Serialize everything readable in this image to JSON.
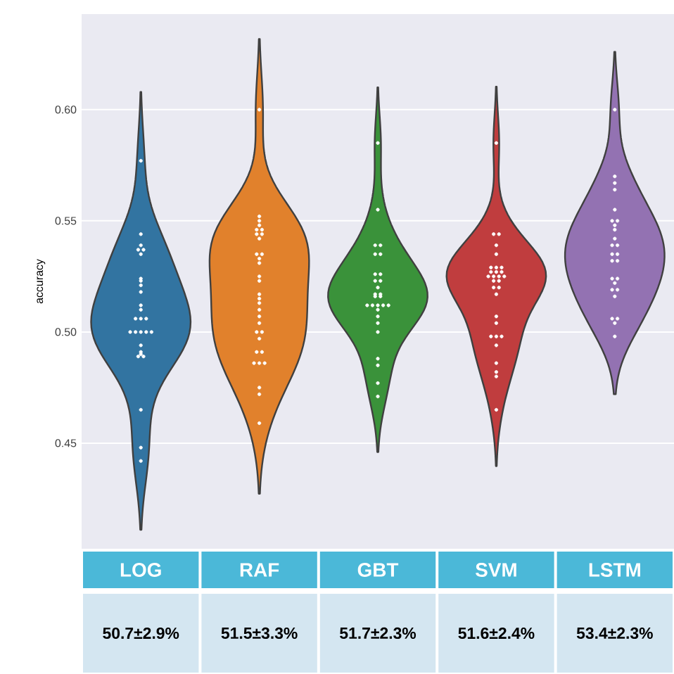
{
  "chart_data": {
    "type": "scatter",
    "ylabel": "accuracy",
    "categories": [
      "LOG",
      "RAF",
      "GBT",
      "SVM",
      "LSTM"
    ],
    "colors": [
      "#3274a1",
      "#e1812c",
      "#3a923a",
      "#c03d3e",
      "#9372b2"
    ],
    "ylim": [
      0.4025,
      0.643
    ],
    "yticks": [
      {
        "value": 0.45,
        "label": "0.45"
      },
      {
        "value": 0.5,
        "label": "0.50"
      },
      {
        "value": 0.55,
        "label": "0.55"
      },
      {
        "value": 0.6,
        "label": "0.60"
      }
    ],
    "grid": "y",
    "marker": "circle",
    "series": [
      {
        "color": "#ffffff",
        "x": [
          "LOG",
          "LOG",
          "LOG",
          "LOG",
          "LOG",
          "LOG",
          "LOG",
          "LOG",
          "LOG",
          "LOG",
          "LOG",
          "LOG",
          "LOG",
          "LOG",
          "LOG",
          "LOG",
          "LOG",
          "LOG",
          "LOG",
          "LOG",
          "LOG",
          "LOG",
          "LOG",
          "LOG",
          "LOG",
          "LOG",
          "LOG",
          "LOG"
        ],
        "values": [
          0.577,
          0.544,
          0.539,
          0.537,
          0.535,
          0.524,
          0.523,
          0.521,
          0.518,
          0.512,
          0.51,
          0.506,
          0.506,
          0.506,
          0.5,
          0.5,
          0.5,
          0.5,
          0.5,
          0.494,
          0.491,
          0.49,
          0.489,
          0.489,
          0.465,
          0.448,
          0.442,
          0.537
        ]
      },
      {
        "color": "#ffffff",
        "x": [
          "RAF",
          "RAF",
          "RAF",
          "RAF",
          "RAF",
          "RAF",
          "RAF",
          "RAF",
          "RAF",
          "RAF",
          "RAF",
          "RAF",
          "RAF",
          "RAF",
          "RAF",
          "RAF",
          "RAF",
          "RAF",
          "RAF",
          "RAF",
          "RAF",
          "RAF",
          "RAF",
          "RAF",
          "RAF",
          "RAF",
          "RAF",
          "RAF",
          "RAF",
          "RAF",
          "RAF",
          "RAF"
        ],
        "values": [
          0.6,
          0.552,
          0.55,
          0.548,
          0.546,
          0.546,
          0.544,
          0.544,
          0.542,
          0.535,
          0.535,
          0.533,
          0.531,
          0.525,
          0.523,
          0.517,
          0.515,
          0.513,
          0.51,
          0.507,
          0.504,
          0.5,
          0.5,
          0.497,
          0.491,
          0.491,
          0.486,
          0.486,
          0.486,
          0.475,
          0.472,
          0.459
        ]
      },
      {
        "color": "#ffffff",
        "x": [
          "GBT",
          "GBT",
          "GBT",
          "GBT",
          "GBT",
          "GBT",
          "GBT",
          "GBT",
          "GBT",
          "GBT",
          "GBT",
          "GBT",
          "GBT",
          "GBT",
          "GBT",
          "GBT",
          "GBT",
          "GBT",
          "GBT",
          "GBT",
          "GBT",
          "GBT",
          "GBT",
          "GBT",
          "GBT",
          "GBT",
          "GBT",
          "GBT"
        ],
        "values": [
          0.585,
          0.555,
          0.539,
          0.539,
          0.535,
          0.535,
          0.526,
          0.523,
          0.52,
          0.517,
          0.516,
          0.516,
          0.512,
          0.512,
          0.512,
          0.512,
          0.512,
          0.51,
          0.507,
          0.504,
          0.5,
          0.488,
          0.485,
          0.477,
          0.471,
          0.526,
          0.517,
          0.523
        ]
      },
      {
        "color": "#ffffff",
        "x": [
          "SVM",
          "SVM",
          "SVM",
          "SVM",
          "SVM",
          "SVM",
          "SVM",
          "SVM",
          "SVM",
          "SVM",
          "SVM",
          "SVM",
          "SVM",
          "SVM",
          "SVM",
          "SVM",
          "SVM",
          "SVM",
          "SVM",
          "SVM",
          "SVM",
          "SVM",
          "SVM",
          "SVM",
          "SVM",
          "SVM",
          "SVM",
          "SVM",
          "SVM",
          "SVM"
        ],
        "values": [
          0.585,
          0.544,
          0.544,
          0.539,
          0.535,
          0.529,
          0.529,
          0.527,
          0.527,
          0.527,
          0.525,
          0.525,
          0.525,
          0.525,
          0.523,
          0.523,
          0.52,
          0.517,
          0.507,
          0.504,
          0.498,
          0.498,
          0.498,
          0.494,
          0.486,
          0.482,
          0.48,
          0.465,
          0.52,
          0.529
        ]
      },
      {
        "color": "#ffffff",
        "x": [
          "LSTM",
          "LSTM",
          "LSTM",
          "LSTM",
          "LSTM",
          "LSTM",
          "LSTM",
          "LSTM",
          "LSTM",
          "LSTM",
          "LSTM",
          "LSTM",
          "LSTM",
          "LSTM",
          "LSTM",
          "LSTM",
          "LSTM",
          "LSTM",
          "LSTM",
          "LSTM",
          "LSTM",
          "LSTM",
          "LSTM",
          "LSTM",
          "LSTM",
          "LSTM"
        ],
        "values": [
          0.6,
          0.57,
          0.567,
          0.564,
          0.555,
          0.55,
          0.55,
          0.548,
          0.546,
          0.542,
          0.539,
          0.539,
          0.535,
          0.535,
          0.532,
          0.532,
          0.524,
          0.524,
          0.522,
          0.519,
          0.519,
          0.516,
          0.506,
          0.506,
          0.504,
          0.498
        ]
      }
    ],
    "annotations": [
      "50.7±2.9%",
      "51.5±3.3%",
      "51.7±2.3%",
      "51.6±2.4%",
      "53.4±2.3%"
    ]
  }
}
